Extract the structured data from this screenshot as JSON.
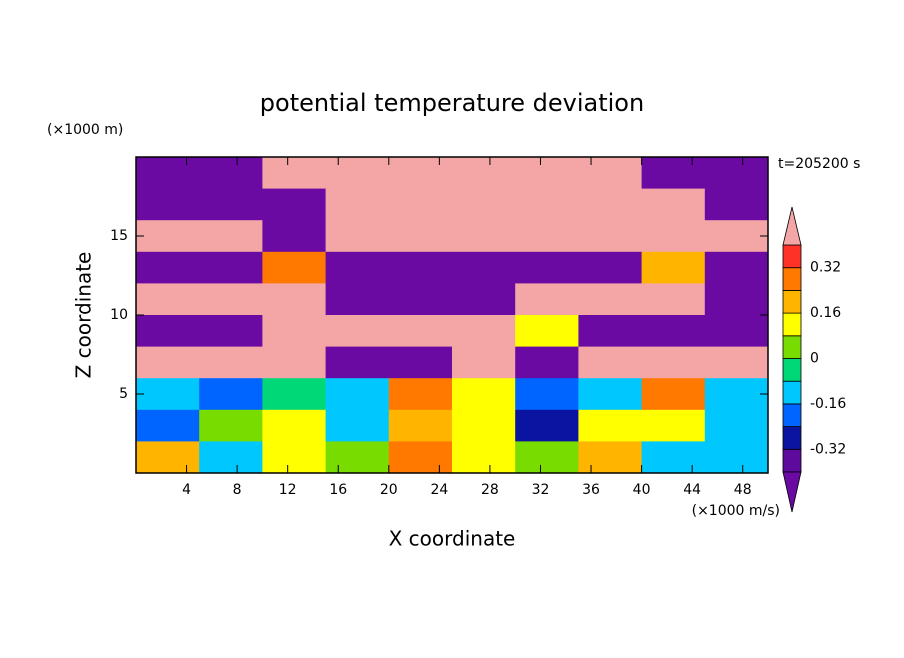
{
  "chart_data": {
    "type": "contour",
    "title": "potential temperature deviation",
    "y_unit": "(×1000 m)",
    "x_unit": "(×1000 m/s)",
    "xlabel": "X coordinate",
    "ylabel": "Z coordinate",
    "time_label": "t=205200 s",
    "xlim": [
      0,
      50
    ],
    "ylim": [
      0,
      20
    ],
    "xticks": [
      4,
      8,
      12,
      16,
      20,
      24,
      28,
      32,
      36,
      40,
      44,
      48
    ],
    "yticks": [
      5,
      10,
      15
    ],
    "x": [
      2.5,
      7.5,
      12.5,
      17.5,
      22.5,
      27.5,
      32.5,
      37.5,
      42.5,
      47.5
    ],
    "y": [
      19,
      17,
      15,
      13,
      11,
      9,
      7,
      5,
      3,
      1
    ],
    "z": [
      [
        -0.5,
        -0.5,
        0.5,
        0.5,
        0.5,
        0.5,
        0.5,
        0.5,
        -0.5,
        -0.5
      ],
      [
        -0.5,
        -0.5,
        -0.5,
        0.5,
        0.5,
        0.5,
        0.5,
        0.5,
        0.5,
        -0.5
      ],
      [
        0.5,
        0.5,
        -0.5,
        0.5,
        0.5,
        0.5,
        0.5,
        0.5,
        0.5,
        0.5
      ],
      [
        -0.5,
        -0.5,
        0.3,
        -0.5,
        -0.5,
        -0.5,
        -0.5,
        -0.5,
        0.2,
        -0.5
      ],
      [
        0.5,
        0.5,
        0.5,
        -0.5,
        -0.5,
        -0.5,
        0.5,
        0.5,
        0.5,
        -0.5
      ],
      [
        -0.5,
        -0.5,
        0.5,
        0.5,
        0.5,
        0.5,
        0.1,
        -0.5,
        -0.5,
        -0.5
      ],
      [
        0.5,
        0.5,
        0.5,
        -0.5,
        -0.5,
        0.5,
        -0.5,
        0.5,
        0.5,
        0.5
      ],
      [
        -0.1,
        -0.2,
        -0.05,
        -0.1,
        0.3,
        0.1,
        -0.2,
        -0.1,
        0.3,
        -0.1
      ],
      [
        -0.2,
        0.05,
        0.1,
        -0.1,
        0.2,
        0.1,
        -0.3,
        0.1,
        0.1,
        -0.15
      ],
      [
        0.2,
        -0.1,
        0.1,
        0.05,
        0.25,
        0.1,
        0.05,
        0.2,
        -0.1,
        -0.15
      ]
    ],
    "levels": [
      -0.4,
      -0.32,
      -0.24,
      -0.16,
      -0.08,
      0,
      0.08,
      0.16,
      0.24,
      0.32,
      0.4
    ],
    "colors": [
      "#6a0aa3",
      "#5e0a9c",
      "#0a14a0",
      "#0064ff",
      "#00c8ff",
      "#00d878",
      "#78dc00",
      "#ffff00",
      "#ffb400",
      "#ff7800",
      "#ff3228",
      "#f4a6a6"
    ],
    "cbticks": [
      0.32,
      0.16,
      0,
      -0.16,
      -0.32
    ]
  }
}
